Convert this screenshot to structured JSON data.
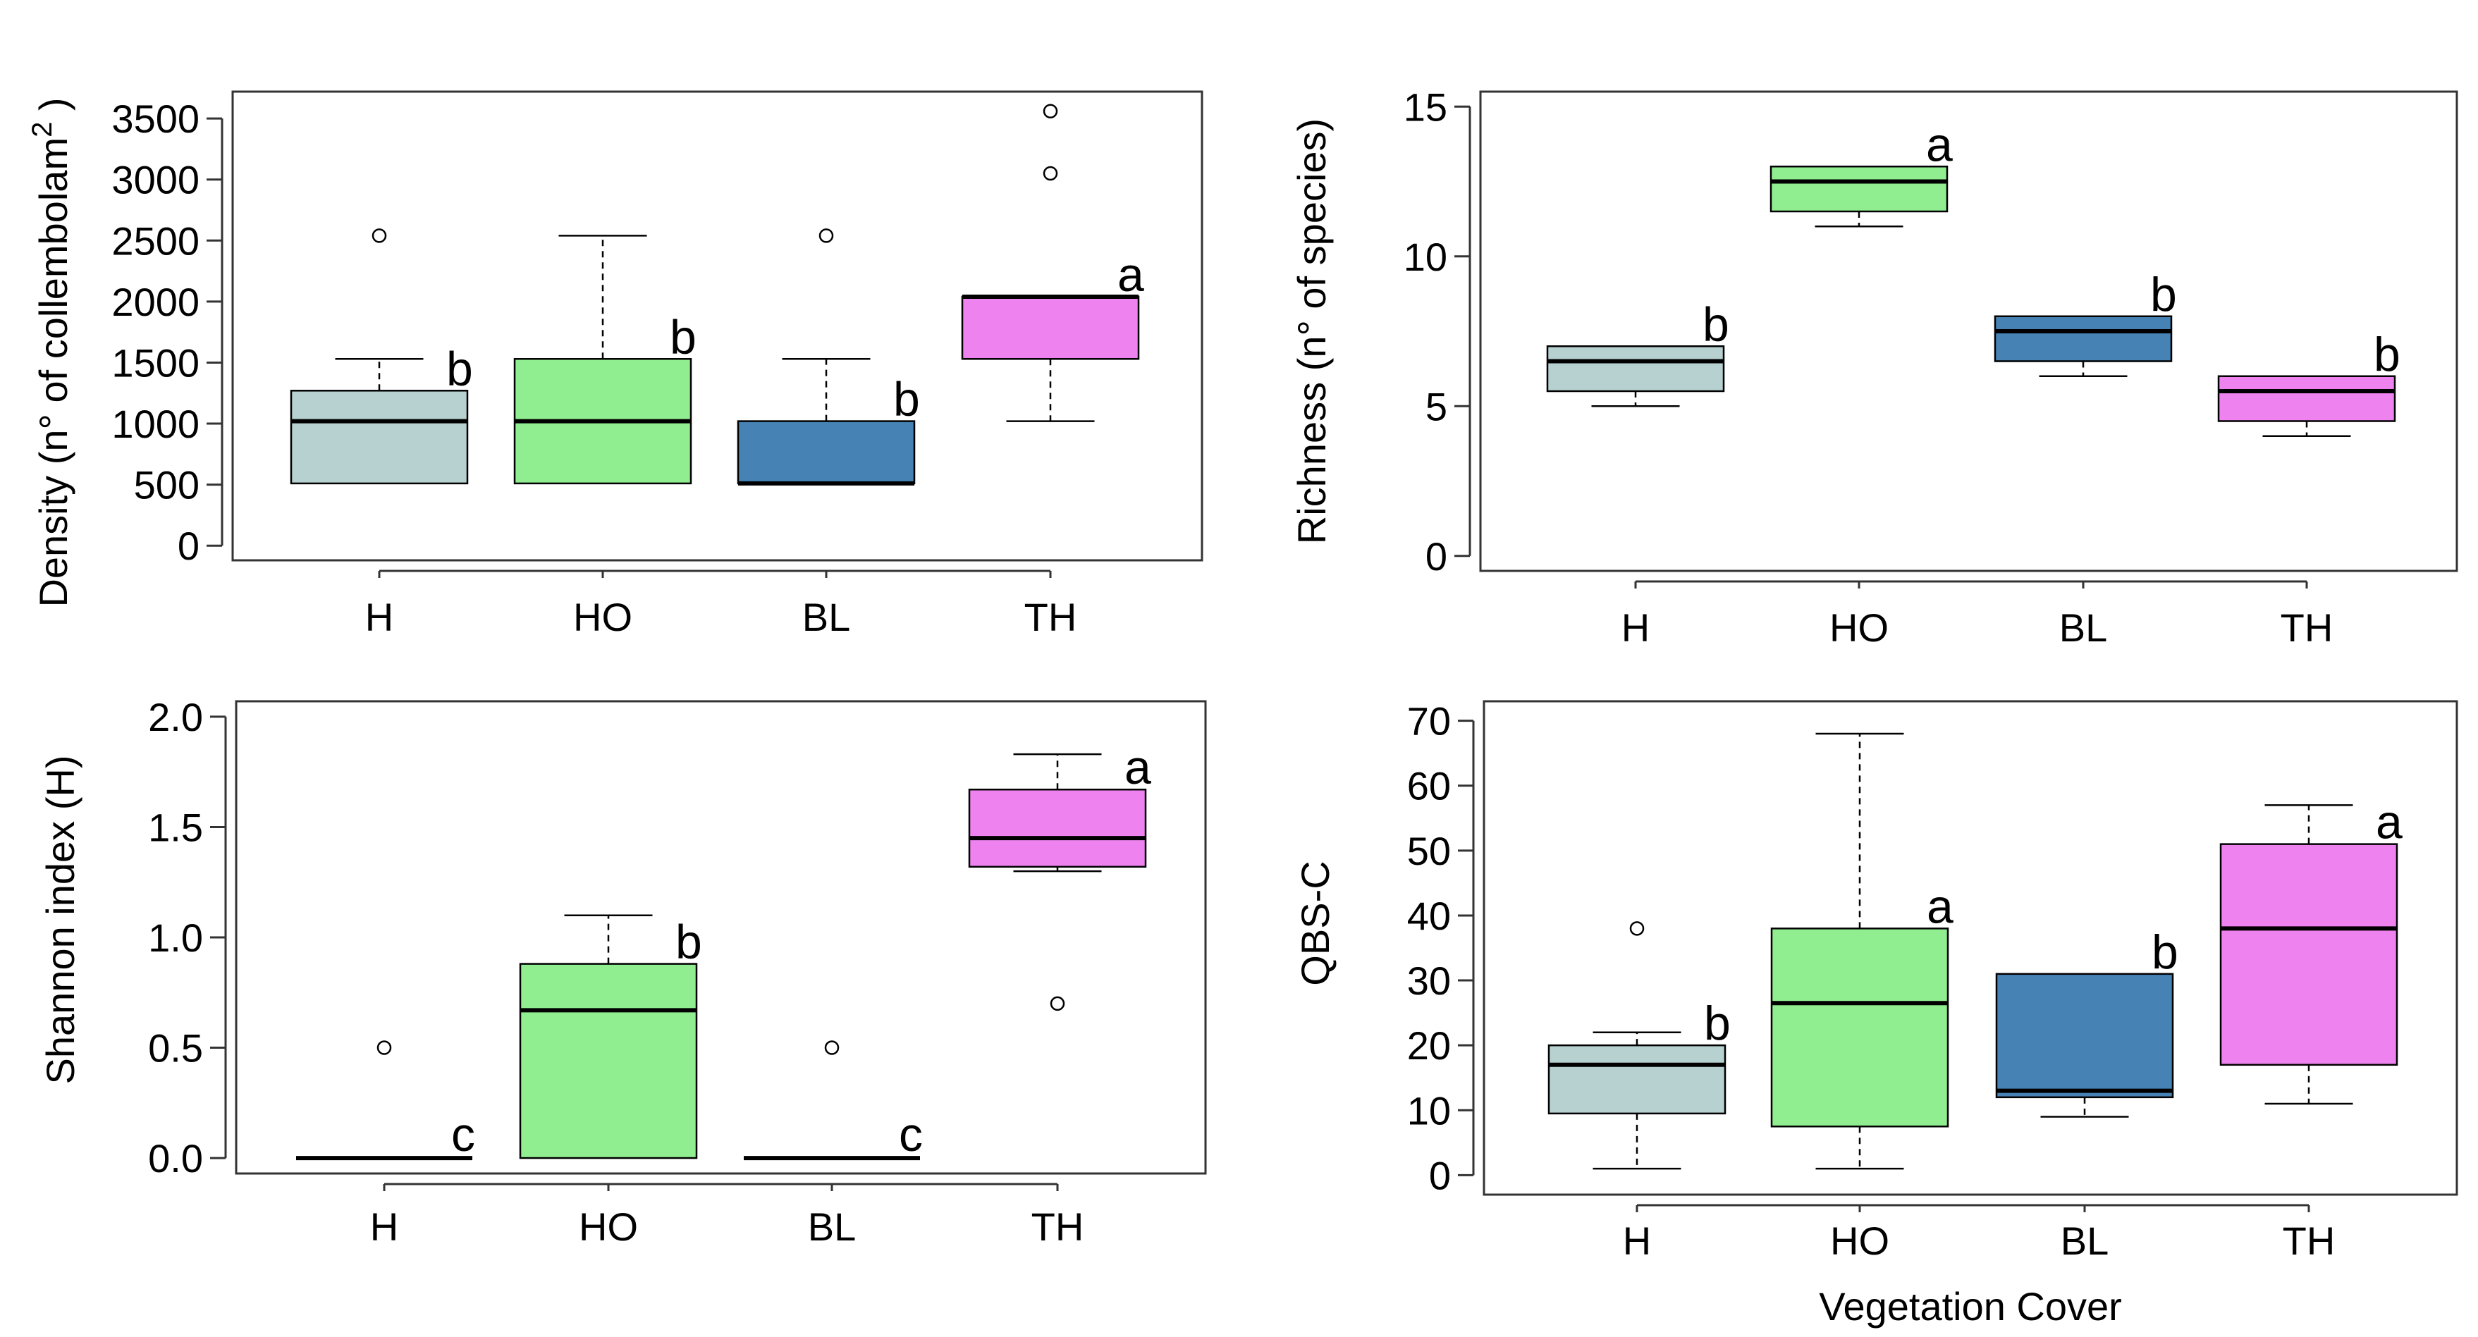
{
  "colors": {
    "H": "#b7d0d0",
    "HO": "#90ee90",
    "BL": "#4682b4",
    "TH": "#ee82ee"
  },
  "chart_data": [
    {
      "type": "box",
      "panel": "top-left",
      "ylabel": "Density (n° of collembolam",
      "ylabel_sup": "2",
      "ylabel_close": " )",
      "xlabel": "",
      "ylim": [
        -120,
        3720
      ],
      "yticks": [
        0,
        500,
        1000,
        1500,
        2000,
        2500,
        3000,
        3500
      ],
      "ytick_labels": [
        "0",
        "500",
        "1000",
        "1500",
        "2000",
        "2500",
        "3000",
        "3500"
      ],
      "categories": [
        "H",
        "HO",
        "BL",
        "TH"
      ],
      "boxes": [
        {
          "label": "H",
          "whislo": 510,
          "q1": 510,
          "med": 1020,
          "q3": 1270,
          "whishi": 1530,
          "fliers": [
            2540
          ],
          "letter": "b"
        },
        {
          "label": "HO",
          "whislo": 510,
          "q1": 510,
          "med": 1020,
          "q3": 1530,
          "whishi": 2540,
          "fliers": [],
          "letter": "b"
        },
        {
          "label": "BL",
          "whislo": 510,
          "q1": 510,
          "med": 510,
          "q3": 1020,
          "whishi": 1530,
          "fliers": [
            2540
          ],
          "letter": "b"
        },
        {
          "label": "TH",
          "whislo": 1020,
          "q1": 1530,
          "med": 2040,
          "q3": 2040,
          "whishi": 2040,
          "fliers": [
            3050,
            3560
          ],
          "letter": "a"
        }
      ]
    },
    {
      "type": "box",
      "panel": "top-right",
      "ylabel": "Richness (n° of species)",
      "xlabel": "",
      "ylim": [
        -0.5,
        15.5
      ],
      "yticks": [
        0,
        5,
        10,
        15
      ],
      "ytick_labels": [
        "0",
        "5",
        "10",
        "15"
      ],
      "categories": [
        "H",
        "HO",
        "BL",
        "TH"
      ],
      "boxes": [
        {
          "label": "H",
          "whislo": 5,
          "q1": 5.5,
          "med": 6.5,
          "q3": 7,
          "whishi": 7,
          "fliers": [],
          "letter": "b"
        },
        {
          "label": "HO",
          "whislo": 11,
          "q1": 11.5,
          "med": 12.5,
          "q3": 13,
          "whishi": 13,
          "fliers": [],
          "letter": "a"
        },
        {
          "label": "BL",
          "whislo": 6,
          "q1": 6.5,
          "med": 7.5,
          "q3": 8,
          "whishi": 8,
          "fliers": [],
          "letter": "b"
        },
        {
          "label": "TH",
          "whislo": 4,
          "q1": 4.5,
          "med": 5.5,
          "q3": 6,
          "whishi": 6,
          "fliers": [],
          "letter": "b"
        }
      ]
    },
    {
      "type": "box",
      "panel": "bottom-left",
      "ylabel": "Shannon index (H)",
      "xlabel": "",
      "ylim": [
        -0.07,
        2.07
      ],
      "yticks": [
        0,
        0.5,
        1,
        1.5,
        2
      ],
      "ytick_labels": [
        "0.0",
        "0.5",
        "1.0",
        "1.5",
        "2.0"
      ],
      "categories": [
        "H",
        "HO",
        "BL",
        "TH"
      ],
      "boxes": [
        {
          "label": "H",
          "whislo": 0,
          "q1": 0,
          "med": 0,
          "q3": 0,
          "whishi": 0,
          "fliers": [
            0.5
          ],
          "letter": "c"
        },
        {
          "label": "HO",
          "whislo": 0,
          "q1": 0,
          "med": 0.67,
          "q3": 0.88,
          "whishi": 1.1,
          "fliers": [],
          "letter": "b"
        },
        {
          "label": "BL",
          "whislo": 0,
          "q1": 0,
          "med": 0,
          "q3": 0,
          "whishi": 0,
          "fliers": [
            0.5
          ],
          "letter": "c"
        },
        {
          "label": "TH",
          "whislo": 1.3,
          "q1": 1.32,
          "med": 1.45,
          "q3": 1.67,
          "whishi": 1.83,
          "fliers": [
            0.7
          ],
          "letter": "a"
        }
      ]
    },
    {
      "type": "box",
      "panel": "bottom-right",
      "ylabel": "QBS-C",
      "xlabel": "Vegetation Cover",
      "ylim": [
        -3,
        73
      ],
      "yticks": [
        0,
        10,
        20,
        30,
        40,
        50,
        60,
        70
      ],
      "ytick_labels": [
        "0",
        "10",
        "20",
        "30",
        "40",
        "50",
        "60",
        "70"
      ],
      "categories": [
        "H",
        "HO",
        "BL",
        "TH"
      ],
      "boxes": [
        {
          "label": "H",
          "whislo": 1,
          "q1": 9.5,
          "med": 17,
          "q3": 20,
          "whishi": 22,
          "fliers": [
            38
          ],
          "letter": "b"
        },
        {
          "label": "HO",
          "whislo": 1,
          "q1": 7.5,
          "med": 26.5,
          "q3": 38,
          "whishi": 68,
          "fliers": [],
          "letter": "a"
        },
        {
          "label": "BL",
          "whislo": 9,
          "q1": 12,
          "med": 13,
          "q3": 31,
          "whishi": 31,
          "fliers": [],
          "letter": "b"
        },
        {
          "label": "TH",
          "whislo": 11,
          "q1": 17,
          "med": 38,
          "q3": 51,
          "whishi": 57,
          "fliers": [],
          "letter": "a"
        }
      ]
    }
  ]
}
